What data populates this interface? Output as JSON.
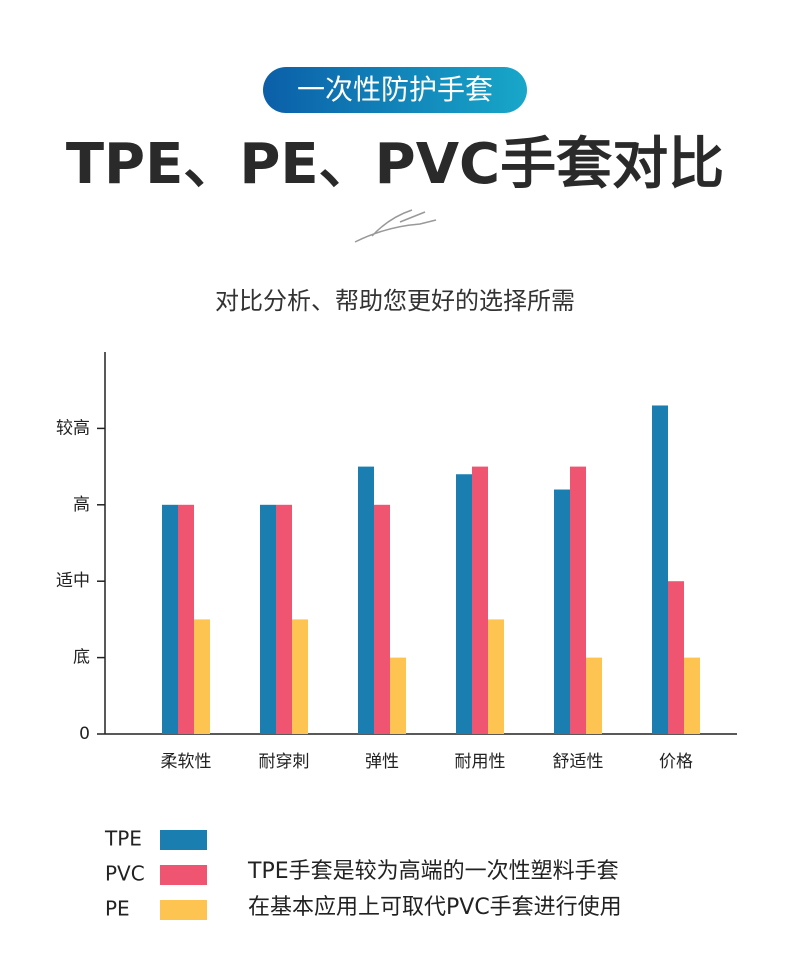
{
  "chart_data": {
    "type": "bar",
    "badge": "一次性防护手套",
    "title": "TPE、PE、PVC手套对比",
    "subtitle": "对比分析、帮助您更好的选择所需",
    "annotations": [
      "TPE手套是较为高端的一次性塑料手套",
      "在基本应用上可取代PVC手套进行使用"
    ],
    "categories": [
      "柔软性",
      "耐穿刺",
      "弹性",
      "耐用性",
      "舒适性",
      "价格"
    ],
    "series": [
      {
        "name": "TPE",
        "color": "#1a7fb0",
        "values": [
          3,
          3,
          3.5,
          3.4,
          3.2,
          4.3
        ]
      },
      {
        "name": "PVC",
        "color": "#ef5470",
        "values": [
          3,
          3,
          3,
          3.5,
          3.5,
          2
        ]
      },
      {
        "name": "PE",
        "color": "#fdc451",
        "values": [
          1.5,
          1.5,
          1,
          1.5,
          1,
          1
        ]
      }
    ],
    "ylim": [
      0,
      5
    ],
    "yticks": [
      0,
      {
        "value": 1,
        "label": "底"
      },
      {
        "value": 2,
        "label": "适中"
      },
      {
        "value": 3,
        "label": "高"
      },
      {
        "value": 4,
        "label": "较高"
      }
    ],
    "grid": false
  }
}
